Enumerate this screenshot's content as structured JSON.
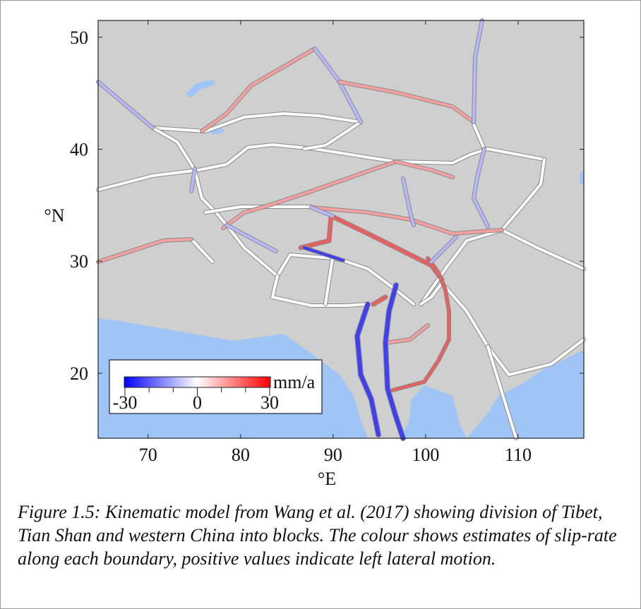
{
  "figure": {
    "map": {
      "xlim": [
        64.6,
        117.1
      ],
      "ylim": [
        14.2,
        51.5
      ],
      "xticks": [
        70,
        80,
        90,
        100,
        110
      ],
      "yticks": [
        20,
        30,
        40,
        50
      ],
      "xlabel": "°E",
      "ylabel": "°N"
    },
    "colorbar": {
      "lim": [
        -30,
        30
      ],
      "ticks": [
        -30,
        0,
        30
      ],
      "minor_ticks": [
        -20,
        -10,
        10,
        20
      ],
      "unit": "mm/a",
      "colors": [
        "#0000ff",
        "#ffffff",
        "#ff0000"
      ]
    },
    "caption": "Figure 1.5: Kinematic model from Wang et al. (2017) showing division of Tibet, Tian Shan and western China into blocks. The colour shows estimates of slip-rate along each boundary, positive values indicate left lateral motion."
  }
}
